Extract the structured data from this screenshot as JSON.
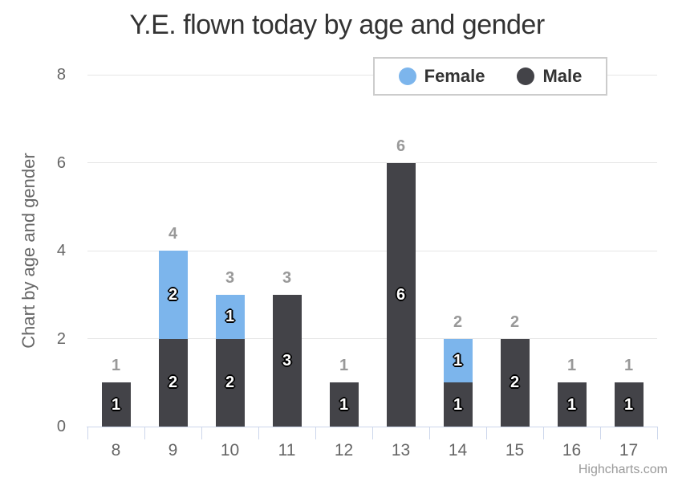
{
  "chart_data": {
    "type": "bar",
    "stacked": true,
    "title": "Y.E. flown today by age and gender",
    "xlabel": "",
    "ylabel": "Chart by age and gender",
    "categories": [
      "8",
      "9",
      "10",
      "11",
      "12",
      "13",
      "14",
      "15",
      "16",
      "17"
    ],
    "series": [
      {
        "name": "Female",
        "color": "#7cb5ec",
        "values": [
          0,
          2,
          1,
          0,
          0,
          0,
          1,
          0,
          0,
          0
        ]
      },
      {
        "name": "Male",
        "color": "#434348",
        "values": [
          1,
          2,
          2,
          3,
          1,
          6,
          1,
          2,
          1,
          1
        ]
      }
    ],
    "stack_totals": [
      1,
      4,
      3,
      3,
      1,
      6,
      2,
      2,
      1,
      1
    ],
    "ylim": [
      0,
      8
    ],
    "yticks": [
      0,
      2,
      4,
      6,
      8
    ],
    "grid": true,
    "legend_position": "top"
  },
  "credits": "Highcharts.com",
  "colors": {
    "female": "#7cb5ec",
    "male": "#434348",
    "grid": "#e6e6e6",
    "axis_line": "#ccd6eb",
    "text_muted": "#666666",
    "stack_label": "#999999",
    "title_text": "#333333",
    "legend_text": "#333333",
    "legend_border": "#cccccc"
  }
}
